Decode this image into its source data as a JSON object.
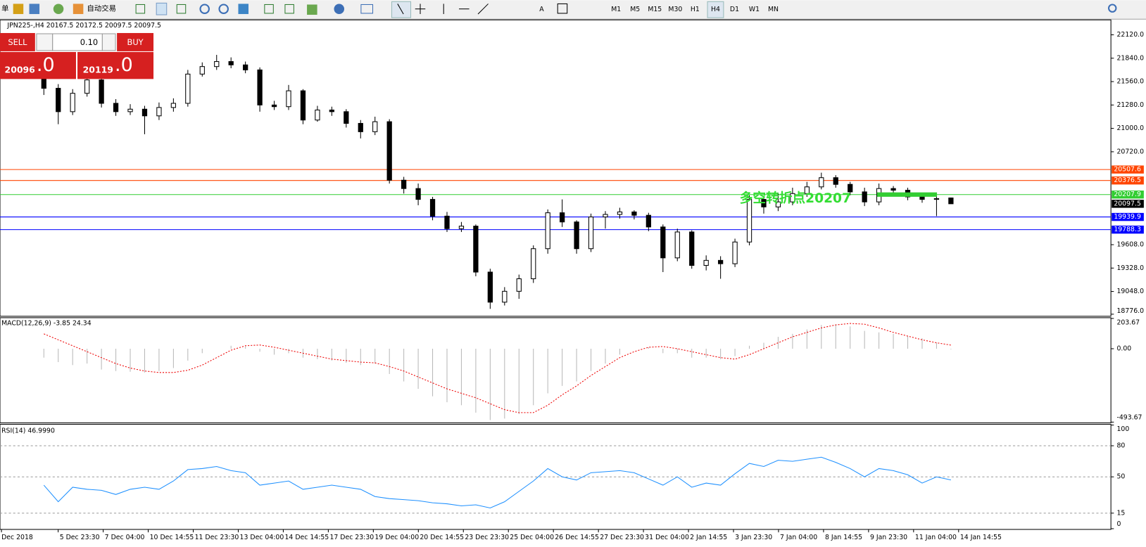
{
  "toolbar": {
    "left": "单",
    "autotrade": "自动交易",
    "timeframes": [
      "M1",
      "M5",
      "M15",
      "M30",
      "H1",
      "H4",
      "D1",
      "W1",
      "MN"
    ]
  },
  "trade_panel": {
    "sell": "SELL",
    "buy": "BUY",
    "lot": "0.10",
    "sell_main": "20096",
    "sell_frac": ".0",
    "buy_main": "20119",
    "buy_frac": ".0"
  },
  "time_axis": {
    "labels": [
      "Dec 2018",
      "5 Dec 23:30",
      "7 Dec 04:00",
      "10 Dec 14:55",
      "11 Dec 23:30",
      "13 Dec 04:00",
      "14 Dec 14:55",
      "17 Dec 23:30",
      "19 Dec 04:00",
      "20 Dec 14:55",
      "23 Dec 23:30",
      "25 Dec 04:00",
      "26 Dec 14:55",
      "27 Dec 23:30",
      "31 Dec 04:00",
      "2 Jan 14:55",
      "3 Jan 23:30",
      "7 Jan 04:00",
      "8 Jan 14:55",
      "9 Jan 23:30",
      "11 Jan 04:00",
      "14 Jan 14:55"
    ]
  },
  "chart_data": [
    {
      "type": "candlestick",
      "title": "JPN225-,H4  20167.5 20172.5 20097.5 20097.5",
      "open": [
        21650,
        21480,
        21200,
        21420,
        21580,
        21300,
        21200,
        21230,
        21150,
        21250,
        21300,
        21650,
        21740,
        21800,
        21760,
        21700,
        21280,
        21260,
        21450,
        21100,
        21220,
        21200,
        21060,
        20960,
        21080,
        20380,
        20280,
        20150,
        19950,
        19800,
        19830,
        19280,
        18920,
        19050,
        19200,
        19560,
        19990,
        19880,
        19560,
        19940,
        19970,
        20000,
        19960,
        19820,
        19450,
        19760,
        19360,
        19420,
        19380,
        19640,
        20150,
        20060,
        20120,
        20220,
        20300,
        20410,
        20330,
        20240,
        20120,
        20280,
        20260,
        20180,
        20150,
        20167.5
      ],
      "high": [
        21700,
        21530,
        21470,
        21640,
        21620,
        21350,
        21290,
        21270,
        21310,
        21360,
        21700,
        21790,
        21880,
        21850,
        21800,
        21730,
        21330,
        21520,
        21470,
        21270,
        21260,
        21230,
        21100,
        21140,
        21110,
        20420,
        20340,
        20180,
        20000,
        19880,
        19850,
        19320,
        19100,
        19250,
        19600,
        20030,
        20150,
        19900,
        19980,
        20010,
        20050,
        20020,
        19990,
        19850,
        19800,
        19780,
        19480,
        19470,
        19680,
        20200,
        20170,
        20230,
        20290,
        20360,
        20470,
        20440,
        20360,
        20290,
        20340,
        20310,
        20290,
        20220,
        20190,
        20172.5
      ],
      "low": [
        21400,
        21050,
        21160,
        21380,
        21250,
        21150,
        21160,
        20930,
        21100,
        21200,
        21260,
        21620,
        21700,
        21720,
        21660,
        21200,
        21220,
        21220,
        21050,
        21080,
        21150,
        21010,
        20880,
        20920,
        20340,
        20220,
        20080,
        19900,
        19760,
        19760,
        19230,
        18840,
        18880,
        18960,
        19150,
        19500,
        19820,
        19500,
        19520,
        19800,
        19920,
        19910,
        19770,
        19280,
        19410,
        19320,
        19300,
        19200,
        19340,
        19600,
        19980,
        20010,
        20080,
        20180,
        20270,
        20290,
        20200,
        20070,
        20080,
        20220,
        20140,
        20110,
        19950,
        20097.5
      ],
      "close": [
        21480,
        21200,
        21420,
        21580,
        21300,
        21200,
        21230,
        21150,
        21250,
        21300,
        21650,
        21740,
        21800,
        21760,
        21700,
        21280,
        21260,
        21450,
        21100,
        21220,
        21200,
        21060,
        20960,
        21080,
        20380,
        20280,
        20150,
        19950,
        19800,
        19830,
        19280,
        18920,
        19050,
        19200,
        19560,
        19990,
        19880,
        19560,
        19940,
        19970,
        20000,
        19960,
        19820,
        19450,
        19760,
        19360,
        19420,
        19380,
        19640,
        20150,
        20060,
        20120,
        20220,
        20300,
        20410,
        20330,
        20240,
        20120,
        20280,
        20260,
        20180,
        20150,
        20160,
        20097.5
      ],
      "ylim": [
        18760,
        22290
      ],
      "yticks": [
        {
          "value": 22120,
          "label": "22120.0"
        },
        {
          "value": 21840,
          "label": "21840.0"
        },
        {
          "value": 21560,
          "label": "21560.0"
        },
        {
          "value": 21280,
          "label": "21280.0"
        },
        {
          "value": 21000,
          "label": "21000.0"
        },
        {
          "value": 20720,
          "label": "20720.0"
        },
        {
          "value": 19608,
          "label": "19608.0"
        },
        {
          "value": 19328,
          "label": "19328.0"
        },
        {
          "value": 19048,
          "label": "19048.0"
        },
        {
          "value": 18776,
          "label": "18776.0"
        }
      ],
      "levels": [
        {
          "value": 20507.6,
          "color": "#ff4500"
        },
        {
          "value": 20376.5,
          "color": "#ff4500"
        },
        {
          "value": 20207.9,
          "color": "#32cd32"
        },
        {
          "value": 19939.9,
          "color": "#0000ff"
        },
        {
          "value": 19788.3,
          "color": "#0000ff"
        }
      ],
      "current_price": 20097.5,
      "annotation": "多空转折点20207"
    },
    {
      "type": "macd",
      "title": "MACD(12,26,9) -3.85 24.34",
      "histogram": [
        -60,
        -90,
        -110,
        -100,
        -140,
        -150,
        -155,
        -160,
        -150,
        -130,
        -80,
        -30,
        0,
        20,
        15,
        -20,
        -40,
        -30,
        -60,
        -70,
        -80,
        -95,
        -110,
        -100,
        -170,
        -220,
        -270,
        -320,
        -360,
        -380,
        -430,
        -480,
        -470,
        -440,
        -380,
        -300,
        -250,
        -220,
        -150,
        -100,
        -40,
        0,
        10,
        -30,
        -30,
        -60,
        -60,
        -70,
        -50,
        20,
        40,
        80,
        100,
        130,
        160,
        165,
        150,
        120,
        110,
        100,
        85,
        70,
        40,
        -3.85
      ],
      "signal": [
        100,
        60,
        20,
        -20,
        -60,
        -100,
        -130,
        -150,
        -160,
        -160,
        -145,
        -110,
        -60,
        -10,
        20,
        25,
        10,
        -10,
        -30,
        -50,
        -70,
        -80,
        -90,
        -95,
        -120,
        -150,
        -190,
        -230,
        -270,
        -300,
        -330,
        -370,
        -410,
        -430,
        -430,
        -380,
        -310,
        -250,
        -180,
        -120,
        -60,
        -20,
        10,
        15,
        0,
        -20,
        -40,
        -60,
        -70,
        -40,
        0,
        40,
        80,
        110,
        140,
        160,
        170,
        165,
        140,
        110,
        85,
        60,
        40,
        24.34
      ],
      "ylim": [
        -493.67,
        203.67
      ],
      "yticks": [
        203.67,
        {
          "value": 0,
          "label": "0.00"
        },
        -493.67
      ]
    },
    {
      "type": "line",
      "title": "RSI(14) 46.9990",
      "values": [
        42,
        26,
        40,
        38,
        37,
        33,
        38,
        40,
        38,
        46,
        57,
        58,
        60,
        56,
        54,
        42,
        44,
        46,
        38,
        40,
        42,
        40,
        38,
        31,
        29,
        28,
        27,
        25,
        24,
        22,
        23,
        20,
        26,
        36,
        46,
        58,
        50,
        47,
        54,
        55,
        56,
        54,
        48,
        42,
        50,
        40,
        44,
        42,
        53,
        63,
        60,
        66,
        65,
        67,
        69,
        64,
        58,
        50,
        58,
        56,
        52,
        44,
        50,
        46.999
      ],
      "color": "#1e90ff",
      "ylim": [
        0,
        100
      ],
      "yticks": [
        0,
        15,
        50,
        80,
        100
      ],
      "levels": [
        15,
        50,
        80
      ]
    }
  ]
}
